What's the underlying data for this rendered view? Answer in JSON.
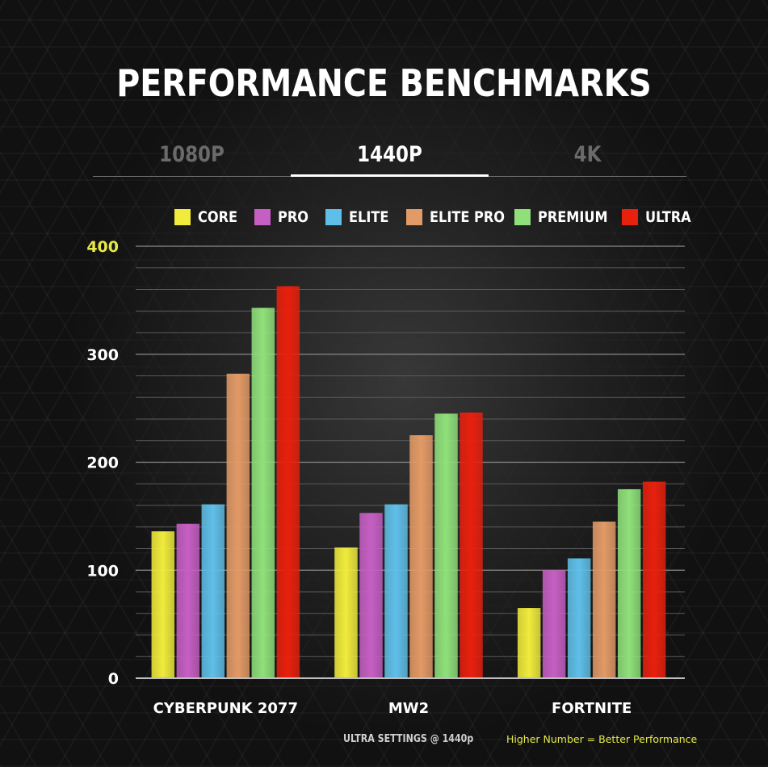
{
  "header": {
    "title": "PERFORMANCE BENCHMARKS"
  },
  "tabs": [
    {
      "label": "1080P",
      "active": false
    },
    {
      "label": "1440P",
      "active": true
    },
    {
      "label": "4K",
      "active": false
    }
  ],
  "footer": {
    "left": "ULTRA SETTINGS @ 1440p",
    "right": "Higher Number = Better Performance"
  },
  "chart_data": {
    "type": "bar",
    "title": "PERFORMANCE BENCHMARKS",
    "categories": [
      "CYBERPUNK 2077",
      "MW2",
      "FORTNITE"
    ],
    "series": [
      {
        "name": "CORE",
        "color": "#f0eb3c",
        "values": [
          136,
          121,
          65
        ]
      },
      {
        "name": "PRO",
        "color": "#c65fc4",
        "values": [
          143,
          153,
          100
        ]
      },
      {
        "name": "ELITE",
        "color": "#5fbfe8",
        "values": [
          161,
          161,
          111
        ]
      },
      {
        "name": "ELITE PRO",
        "color": "#e29a66",
        "values": [
          282,
          225,
          145
        ]
      },
      {
        "name": "PREMIUM",
        "color": "#8fe07a",
        "values": [
          343,
          245,
          175
        ]
      },
      {
        "name": "ULTRA",
        "color": "#e8200d",
        "values": [
          363,
          246,
          182
        ]
      }
    ],
    "yticks": [
      {
        "value": 0,
        "label": "0"
      },
      {
        "value": 100,
        "label": "100"
      },
      {
        "value": 200,
        "label": "200"
      },
      {
        "value": 300,
        "label": "300"
      },
      {
        "value": 400,
        "label": "400"
      }
    ],
    "ylim": [
      0,
      400
    ],
    "top_tick_color": "#e6e84a",
    "grid": true,
    "legend_position": "top-right"
  }
}
